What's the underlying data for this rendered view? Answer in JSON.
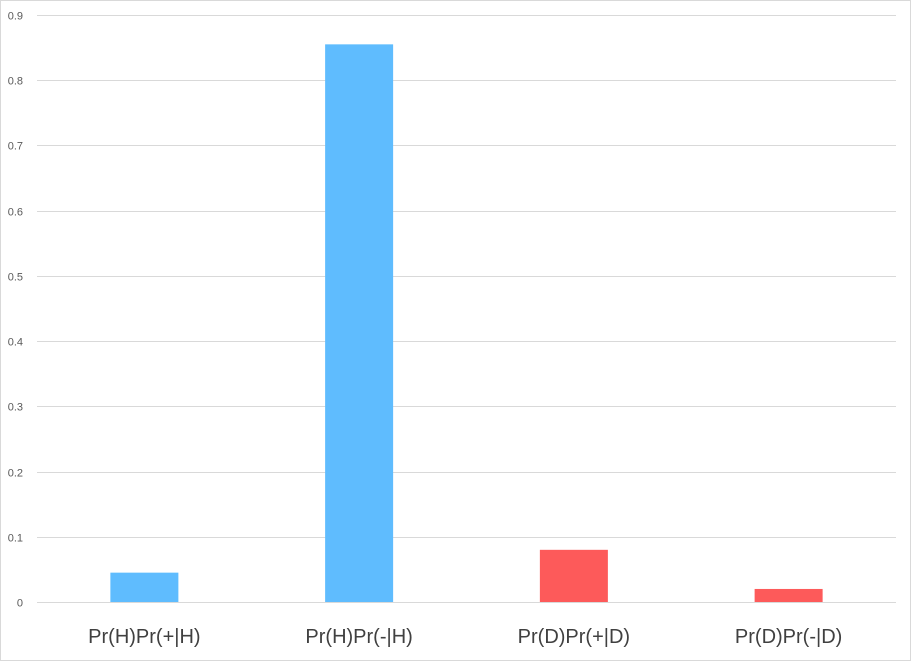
{
  "chart_data": {
    "type": "bar",
    "categories": [
      "Pr(H)Pr(+|H)",
      "Pr(H)Pr(-|H)",
      "Pr(D)Pr(+|D)",
      "Pr(D)Pr(-|D)"
    ],
    "values": [
      0.045,
      0.855,
      0.08,
      0.02
    ],
    "bar_colors": [
      "#5fbcfe",
      "#5fbcfe",
      "#fd5a5a",
      "#fd5a5a"
    ],
    "title": "",
    "xlabel": "",
    "ylabel": "",
    "ylim": [
      0,
      0.9
    ],
    "yticks": [
      0,
      0.1,
      0.2,
      0.3,
      0.4,
      0.5,
      0.6,
      0.7,
      0.8,
      0.9
    ],
    "ytick_labels": [
      "0",
      "0.1",
      "0.2",
      "0.3",
      "0.4",
      "0.5",
      "0.6",
      "0.7",
      "0.8",
      "0.9"
    ],
    "grid": true,
    "legend": "none"
  }
}
